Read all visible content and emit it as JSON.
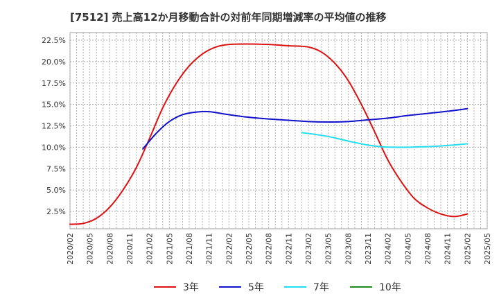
{
  "chart_data": {
    "type": "line",
    "title": "[7512]  売上高12か月移動合計の対前年同期増減率の平均値の推移",
    "xlabel": "",
    "ylabel": "",
    "x_ticks": [
      "2020/02",
      "2020/05",
      "2020/08",
      "2020/11",
      "2021/02",
      "2021/05",
      "2021/08",
      "2021/11",
      "2022/02",
      "2022/05",
      "2022/08",
      "2022/11",
      "2023/02",
      "2023/05",
      "2023/08",
      "2023/11",
      "2024/02",
      "2024/05",
      "2024/08",
      "2024/11",
      "2025/02",
      "2025/05"
    ],
    "y_ticks": [
      "2.5%",
      "5.0%",
      "7.5%",
      "10.0%",
      "12.5%",
      "15.0%",
      "17.5%",
      "20.0%",
      "22.5%"
    ],
    "ylim": [
      0.5,
      22.5
    ],
    "grid": true,
    "legend_position": "bottom",
    "series": [
      {
        "name": "3年",
        "color": "#dd1111",
        "points": [
          [
            "2020/02",
            1.0
          ],
          [
            "2020/04",
            1.1
          ],
          [
            "2020/06",
            1.7
          ],
          [
            "2020/08",
            3.0
          ],
          [
            "2020/10",
            5.0
          ],
          [
            "2020/12",
            7.6
          ],
          [
            "2021/02",
            11.0
          ],
          [
            "2021/04",
            14.6
          ],
          [
            "2021/06",
            17.4
          ],
          [
            "2021/08",
            19.5
          ],
          [
            "2021/10",
            20.9
          ],
          [
            "2021/12",
            21.7
          ],
          [
            "2022/02",
            22.0
          ],
          [
            "2022/05",
            22.05
          ],
          [
            "2022/08",
            22.0
          ],
          [
            "2022/11",
            21.85
          ],
          [
            "2023/02",
            21.7
          ],
          [
            "2023/04",
            21.1
          ],
          [
            "2023/06",
            19.8
          ],
          [
            "2023/08",
            17.8
          ],
          [
            "2023/10",
            15.0
          ],
          [
            "2023/12",
            11.8
          ],
          [
            "2024/02",
            8.5
          ],
          [
            "2024/04",
            6.0
          ],
          [
            "2024/06",
            4.0
          ],
          [
            "2024/08",
            2.9
          ],
          [
            "2024/10",
            2.2
          ],
          [
            "2024/12",
            1.9
          ],
          [
            "2025/02",
            2.2
          ]
        ]
      },
      {
        "name": "5年",
        "color": "#1111cc",
        "points": [
          [
            "2021/01",
            9.8
          ],
          [
            "2021/03",
            11.6
          ],
          [
            "2021/05",
            13.0
          ],
          [
            "2021/07",
            13.8
          ],
          [
            "2021/09",
            14.1
          ],
          [
            "2021/11",
            14.15
          ],
          [
            "2022/02",
            13.8
          ],
          [
            "2022/05",
            13.5
          ],
          [
            "2022/08",
            13.3
          ],
          [
            "2022/11",
            13.15
          ],
          [
            "2023/02",
            13.0
          ],
          [
            "2023/05",
            12.95
          ],
          [
            "2023/08",
            13.0
          ],
          [
            "2023/11",
            13.2
          ],
          [
            "2024/02",
            13.4
          ],
          [
            "2024/05",
            13.7
          ],
          [
            "2024/08",
            13.95
          ],
          [
            "2024/11",
            14.2
          ],
          [
            "2025/02",
            14.5
          ]
        ]
      },
      {
        "name": "7年",
        "color": "#22ddee",
        "points": [
          [
            "2023/01",
            11.7
          ],
          [
            "2023/03",
            11.5
          ],
          [
            "2023/05",
            11.25
          ],
          [
            "2023/07",
            10.9
          ],
          [
            "2023/09",
            10.55
          ],
          [
            "2023/11",
            10.25
          ],
          [
            "2024/01",
            10.05
          ],
          [
            "2024/03",
            10.0
          ],
          [
            "2024/05",
            10.0
          ],
          [
            "2024/07",
            10.05
          ],
          [
            "2024/09",
            10.1
          ],
          [
            "2024/11",
            10.2
          ],
          [
            "2025/02",
            10.4
          ]
        ]
      },
      {
        "name": "10年",
        "color": "#228822",
        "points": []
      }
    ]
  }
}
